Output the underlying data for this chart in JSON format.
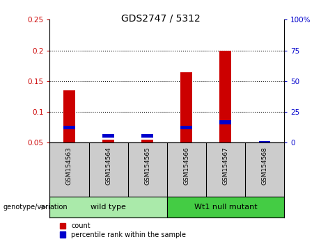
{
  "title": "GDS2747 / 5312",
  "samples": [
    "GSM154563",
    "GSM154564",
    "GSM154565",
    "GSM154566",
    "GSM154567",
    "GSM154568"
  ],
  "red_values": [
    0.135,
    0.055,
    0.055,
    0.165,
    0.2,
    0.05
  ],
  "blue_values": [
    0.075,
    0.061,
    0.061,
    0.075,
    0.083,
    0.05
  ],
  "ylim_left": [
    0.05,
    0.25
  ],
  "ylim_right": [
    0,
    100
  ],
  "yticks_left": [
    0.05,
    0.1,
    0.15,
    0.2,
    0.25
  ],
  "yticks_right": [
    0,
    25,
    50,
    75,
    100
  ],
  "ytick_labels_left": [
    "0.05",
    "0.1",
    "0.15",
    "0.2",
    "0.25"
  ],
  "ytick_labels_right": [
    "0",
    "25",
    "50",
    "75",
    "100%"
  ],
  "left_color": "#cc0000",
  "right_color": "#0000cc",
  "bar_width": 0.3,
  "blue_bar_height": 0.006,
  "gridlines": [
    0.1,
    0.15,
    0.2
  ],
  "wild_type_color": "#aaeaaa",
  "mutant_color": "#44cc44",
  "sample_bg_color": "#cccccc",
  "genotype_label": "genotype/variation",
  "legend_red": "count",
  "legend_blue": "percentile rank within the sample",
  "background_color": "#ffffff"
}
